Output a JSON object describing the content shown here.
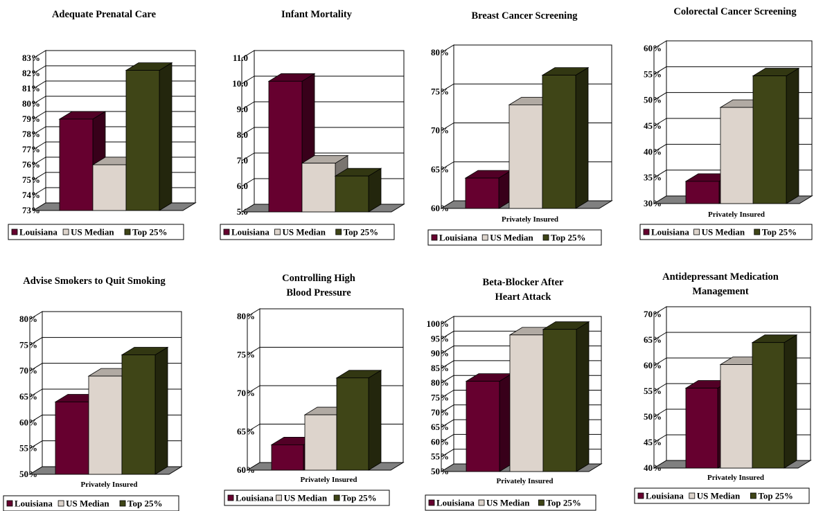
{
  "colors": {
    "Louisiana": "#66002f",
    "US Median": "#ddd4cc",
    "Top 25%": "#3f4517"
  },
  "legend": [
    "Louisiana",
    "US Median",
    "Top 25%"
  ],
  "chart_data": [
    {
      "type": "bar",
      "title": "Adequate Prenatal Care",
      "categories": [
        ""
      ],
      "series": [
        {
          "name": "Louisiana",
          "values": [
            79.0
          ]
        },
        {
          "name": "US Median",
          "values": [
            76.0
          ]
        },
        {
          "name": "Top 25%",
          "values": [
            82.2
          ]
        }
      ],
      "ylim": [
        73,
        83
      ],
      "yticks": [
        "73%",
        "74%",
        "75%",
        "76%",
        "77%",
        "78%",
        "79%",
        "80%",
        "81%",
        "82%",
        "83%"
      ],
      "xlabel": "",
      "grid": true,
      "legend_position": "bottom"
    },
    {
      "type": "bar",
      "title": "Infant Mortality",
      "categories": [
        ""
      ],
      "series": [
        {
          "name": "Louisiana",
          "values": [
            10.1
          ]
        },
        {
          "name": "US Median",
          "values": [
            6.9
          ]
        },
        {
          "name": "Top 25%",
          "values": [
            6.4
          ]
        }
      ],
      "ylim": [
        5,
        11
      ],
      "yticks": [
        "5.0",
        "6.0",
        "7.0",
        "8.0",
        "9.0",
        "10.0",
        "11.0"
      ],
      "xlabel": "",
      "grid": true,
      "legend_position": "bottom"
    },
    {
      "type": "bar",
      "title": "Breast Cancer Screening",
      "categories": [
        "Privately Insured"
      ],
      "series": [
        {
          "name": "Louisiana",
          "values": [
            63.9
          ]
        },
        {
          "name": "US Median",
          "values": [
            73.3
          ]
        },
        {
          "name": "Top 25%",
          "values": [
            77.1
          ]
        }
      ],
      "ylim": [
        60,
        80
      ],
      "yticks": [
        "60%",
        "65%",
        "70%",
        "75%",
        "80%"
      ],
      "xlabel": "Privately Insured",
      "grid": true,
      "legend_position": "bottom"
    },
    {
      "type": "bar",
      "title": "Colorectal Cancer Screening",
      "categories": [
        "Privately Insured"
      ],
      "series": [
        {
          "name": "Louisiana",
          "values": [
            34.3
          ]
        },
        {
          "name": "US Median",
          "values": [
            48.6
          ]
        },
        {
          "name": "Top 25%",
          "values": [
            54.7
          ]
        }
      ],
      "ylim": [
        30,
        60
      ],
      "yticks": [
        "30%",
        "35%",
        "40%",
        "45%",
        "50%",
        "55%",
        "60%"
      ],
      "xlabel": "Privately Insured",
      "grid": true,
      "legend_position": "bottom"
    },
    {
      "type": "bar",
      "title": "Advise Smokers to Quit Smoking",
      "categories": [
        "Privately Insured"
      ],
      "series": [
        {
          "name": "Louisiana",
          "values": [
            64.0
          ]
        },
        {
          "name": "US Median",
          "values": [
            69.0
          ]
        },
        {
          "name": "Top 25%",
          "values": [
            73.1
          ]
        }
      ],
      "ylim": [
        50,
        80
      ],
      "yticks": [
        "50%",
        "55%",
        "60%",
        "65%",
        "70%",
        "75%",
        "80%"
      ],
      "xlabel": "Privately Insured",
      "grid": true,
      "legend_position": "bottom"
    },
    {
      "type": "bar",
      "title": "Controlling High Blood Pressure",
      "title_lines": [
        "Controlling High",
        "Blood Pressure"
      ],
      "categories": [
        "Privately Insured"
      ],
      "series": [
        {
          "name": "Louisiana",
          "values": [
            63.3
          ]
        },
        {
          "name": "US Median",
          "values": [
            67.2
          ]
        },
        {
          "name": "Top 25%",
          "values": [
            72.0
          ]
        }
      ],
      "ylim": [
        60,
        80
      ],
      "yticks": [
        "60%",
        "65%",
        "70%",
        "75%",
        "80%"
      ],
      "xlabel": "Privately Insured",
      "grid": true,
      "legend_position": "bottom"
    },
    {
      "type": "bar",
      "title": "Beta-Blocker After Heart Attack",
      "title_lines": [
        "Beta-Blocker After",
        "Heart Attack"
      ],
      "categories": [
        "Privately Insured"
      ],
      "series": [
        {
          "name": "Louisiana",
          "values": [
            80.6
          ]
        },
        {
          "name": "US Median",
          "values": [
            96.3
          ]
        },
        {
          "name": "Top 25%",
          "values": [
            98.2
          ]
        }
      ],
      "ylim": [
        50,
        100
      ],
      "yticks": [
        "50%",
        "55%",
        "60%",
        "65%",
        "70%",
        "75%",
        "80%",
        "85%",
        "90%",
        "95%",
        "100%"
      ],
      "xlabel": "Privately Insured",
      "grid": true,
      "legend_position": "bottom"
    },
    {
      "type": "bar",
      "title": "Antidepressant Medication Management",
      "title_lines": [
        "Antidepressant Medication",
        "Management"
      ],
      "categories": [
        "Privately Insured"
      ],
      "series": [
        {
          "name": "Louisiana",
          "values": [
            55.6
          ]
        },
        {
          "name": "US Median",
          "values": [
            60.2
          ]
        },
        {
          "name": "Top 25%",
          "values": [
            64.5
          ]
        }
      ],
      "ylim": [
        40,
        70
      ],
      "yticks": [
        "40%",
        "45%",
        "50%",
        "55%",
        "60%",
        "65%",
        "70%"
      ],
      "xlabel": "Privately Insured",
      "grid": true,
      "legend_position": "bottom"
    }
  ]
}
